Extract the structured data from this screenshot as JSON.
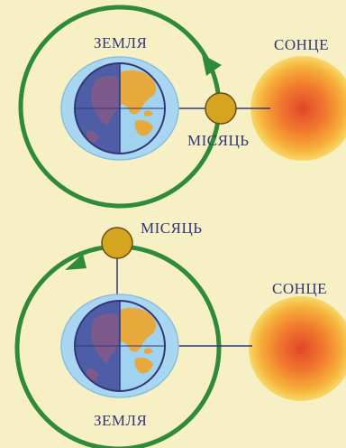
{
  "panels": [
    {
      "earth_label": "ЗЕМЛЯ",
      "moon_label": "МІСЯЦЬ",
      "sun_label": "СОНЦЕ"
    },
    {
      "earth_label": "ЗЕМЛЯ",
      "moon_label": "МІСЯЦЬ",
      "sun_label": "СОНЦЕ"
    }
  ],
  "colors": {
    "background": "#f6f0c4",
    "orbit": "#2f8a3a",
    "atmosphere": "#a9d6f0",
    "ocean_day": "#9fd3ef",
    "ocean_night": "#4d5ea6",
    "land_day": "#e8a93c",
    "land_night": "#7e5a8c",
    "moon": "#d5a520",
    "sun_core": "#e2452a",
    "sun_edge": "#f7ce3c",
    "label": "#34367a"
  }
}
